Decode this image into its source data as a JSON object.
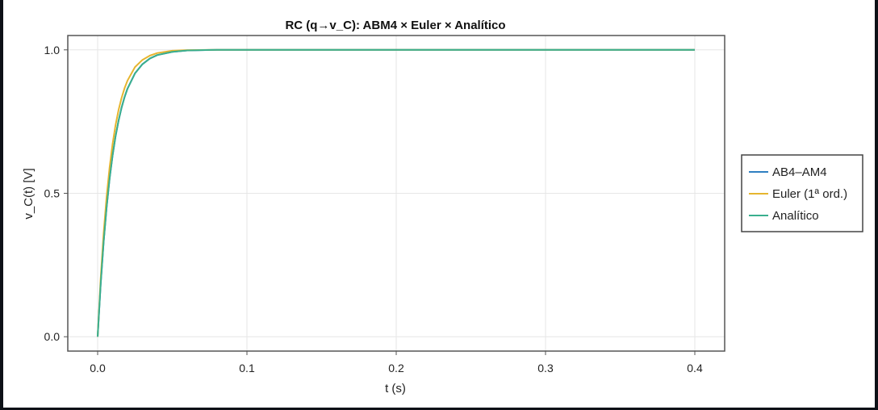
{
  "chart_data": {
    "type": "line",
    "title": "RC (q→v_C): ABM4 × Euler × Analítico",
    "xlabel": "t (s)",
    "ylabel": "v_C(t) [V]",
    "xlim": [
      -0.02,
      0.42
    ],
    "ylim": [
      -0.05,
      1.05
    ],
    "xticks": [
      0.0,
      0.1,
      0.2,
      0.3,
      0.4
    ],
    "xtick_labels": [
      "0.0",
      "0.1",
      "0.2",
      "0.3",
      "0.4"
    ],
    "yticks": [
      0.0,
      0.5,
      1.0
    ],
    "ytick_labels": [
      "0.0",
      "0.5",
      "1.0"
    ],
    "grid": true,
    "legend_position": "right-outside",
    "series": [
      {
        "name": "AB4–AM4",
        "color": "#2f7fc1",
        "x": [
          0.0,
          0.002,
          0.004,
          0.006,
          0.008,
          0.01,
          0.012,
          0.014,
          0.016,
          0.018,
          0.02,
          0.025,
          0.03,
          0.035,
          0.04,
          0.05,
          0.06,
          0.08,
          0.1,
          0.15,
          0.2,
          0.25,
          0.3,
          0.35,
          0.4
        ],
        "y": [
          0.0,
          0.181,
          0.33,
          0.451,
          0.551,
          0.632,
          0.699,
          0.753,
          0.798,
          0.835,
          0.865,
          0.918,
          0.95,
          0.97,
          0.982,
          0.993,
          0.998,
          1.0,
          1.0,
          1.0,
          1.0,
          1.0,
          1.0,
          1.0,
          1.0
        ]
      },
      {
        "name": "Euler (1ª ord.)",
        "color": "#e6b52f",
        "x": [
          0.0,
          0.002,
          0.004,
          0.006,
          0.008,
          0.01,
          0.012,
          0.014,
          0.016,
          0.018,
          0.02,
          0.025,
          0.03,
          0.035,
          0.04,
          0.05,
          0.06,
          0.08,
          0.1,
          0.15,
          0.2,
          0.25,
          0.3,
          0.35,
          0.4
        ],
        "y": [
          0.0,
          0.2,
          0.36,
          0.488,
          0.59,
          0.672,
          0.738,
          0.79,
          0.832,
          0.866,
          0.893,
          0.94,
          0.965,
          0.98,
          0.989,
          0.997,
          0.999,
          1.0,
          1.0,
          1.0,
          1.0,
          1.0,
          1.0,
          1.0,
          1.0
        ]
      },
      {
        "name": "Analítico",
        "color": "#3aaf8e",
        "x": [
          0.0,
          0.002,
          0.004,
          0.006,
          0.008,
          0.01,
          0.012,
          0.014,
          0.016,
          0.018,
          0.02,
          0.025,
          0.03,
          0.035,
          0.04,
          0.05,
          0.06,
          0.08,
          0.1,
          0.15,
          0.2,
          0.25,
          0.3,
          0.35,
          0.4
        ],
        "y": [
          0.0,
          0.181,
          0.33,
          0.451,
          0.551,
          0.632,
          0.699,
          0.753,
          0.798,
          0.835,
          0.865,
          0.918,
          0.95,
          0.97,
          0.982,
          0.993,
          0.998,
          1.0,
          1.0,
          1.0,
          1.0,
          1.0,
          1.0,
          1.0,
          1.0
        ]
      }
    ]
  }
}
